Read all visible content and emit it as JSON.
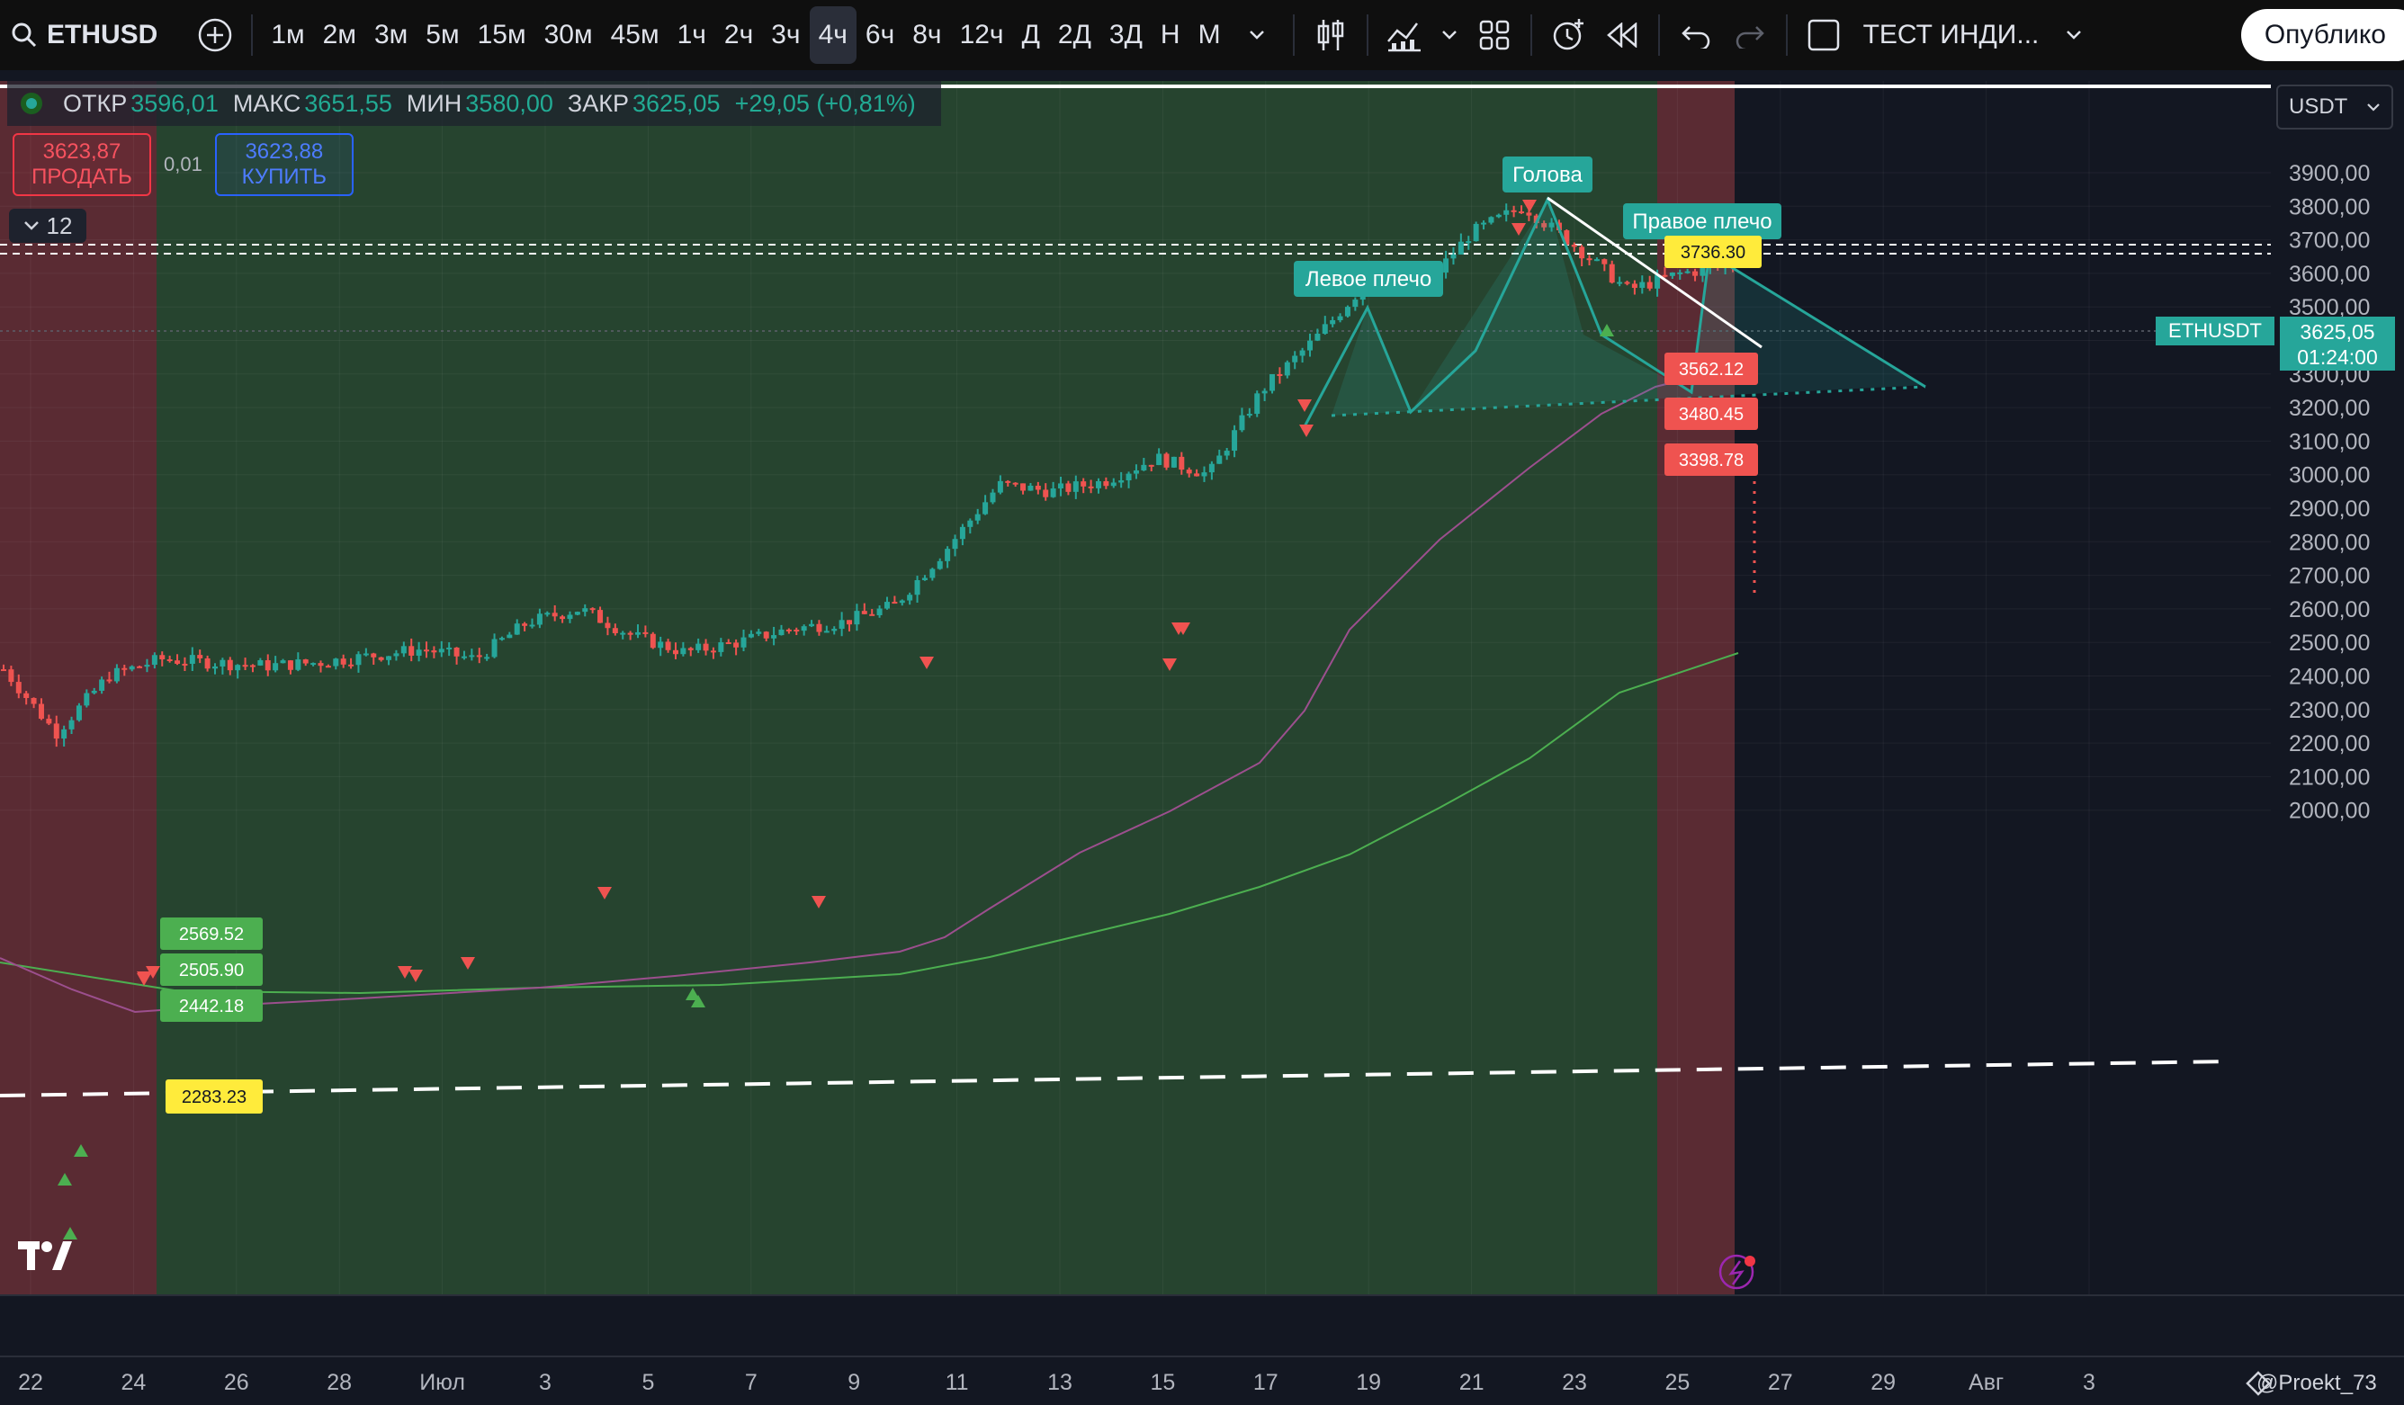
{
  "toolbar": {
    "symbol": "ETHUSD",
    "intervals": [
      "1м",
      "2м",
      "3м",
      "5м",
      "15м",
      "30м",
      "45м",
      "1ч",
      "2ч",
      "3ч",
      "4ч",
      "6ч",
      "8ч",
      "12ч",
      "Д",
      "2Д",
      "3Д",
      "Н",
      "М"
    ],
    "active_interval": "4ч",
    "indicator_template": "ТЕСТ ИНДИ...",
    "publish_label": "Опублико"
  },
  "legend": {
    "open_label": "ОТКР",
    "open": "3596,01",
    "high_label": "МАКС",
    "high": "3651,55",
    "low_label": "МИН",
    "low": "3580,00",
    "close_label": "ЗАКР",
    "close": "3625,05",
    "change": "+29,05 (+0,81%)"
  },
  "trade": {
    "sell_price": "3623,87",
    "sell_label": "ПРОДАТЬ",
    "spread": "0,01",
    "buy_price": "3623,88",
    "buy_label": "КУПИТЬ"
  },
  "collapse_count": "12",
  "price_axis": {
    "currency": "USDT",
    "ticks": [
      "3900,00",
      "3800,00",
      "3700,00",
      "3600,00",
      "3500,00",
      "3400,00",
      "3300,00",
      "3200,00",
      "3100,00",
      "3000,00",
      "2900,00",
      "2800,00",
      "2700,00",
      "2600,00",
      "2500,00",
      "2400,00",
      "2300,00",
      "2200,00",
      "2100,00",
      "2000,00"
    ],
    "current_symbol": "ETHUSDT",
    "current_price": "3625,05",
    "countdown": "01:24:00"
  },
  "time_axis": {
    "labels": [
      "22",
      "24",
      "26",
      "28",
      "Июл",
      "3",
      "5",
      "7",
      "9",
      "11",
      "13",
      "15",
      "17",
      "19",
      "21",
      "23",
      "25",
      "27",
      "29",
      "Авг",
      "3"
    ]
  },
  "annotations": {
    "head": "Голова",
    "left_shoulder": "Левое плечо",
    "right_shoulder": "Правое плечо"
  },
  "level_labels": {
    "l2569": "2569.52",
    "l2505": "2505.90",
    "l2442": "2442.18",
    "l2283": "2283.23",
    "l3736": "3736.30",
    "l3562": "3562.12",
    "l3480": "3480.45",
    "l3398": "3398.78"
  },
  "watermark": "@Proekt_73",
  "colors": {
    "background": "#131722",
    "green_zone": "#26442f",
    "red_zone": "#5a2b33",
    "up": "#26a69a",
    "down": "#ef5350",
    "ma_fast": "#9c4f8e",
    "ma_slow": "#4caf50",
    "accent": "#26a69a"
  },
  "chart_data": {
    "type": "candlestick",
    "ylim": [
      1940,
      3990
    ],
    "x_dates": [
      "22",
      "24",
      "26",
      "28",
      "Июл",
      "3",
      "5",
      "7",
      "9",
      "11",
      "13",
      "15",
      "17",
      "19",
      "21",
      "23",
      "25"
    ],
    "close_path": [
      [
        "22",
        2420
      ],
      [
        "23",
        2230
      ],
      [
        "24",
        2400
      ],
      [
        "25",
        2450
      ],
      [
        "26",
        2440
      ],
      [
        "27",
        2430
      ],
      [
        "28",
        2440
      ],
      [
        "29",
        2460
      ],
      [
        "30",
        2480
      ],
      [
        "Июл",
        2450
      ],
      [
        "2",
        2560
      ],
      [
        "3",
        2600
      ],
      [
        "4",
        2520
      ],
      [
        "5",
        2470
      ],
      [
        "6",
        2500
      ],
      [
        "7",
        2540
      ],
      [
        "8",
        2560
      ],
      [
        "9",
        2610
      ],
      [
        "10",
        2780
      ],
      [
        "11",
        2970
      ],
      [
        "12",
        2950
      ],
      [
        "13",
        2980
      ],
      [
        "14",
        3050
      ],
      [
        "15",
        3000
      ],
      [
        "16",
        3250
      ],
      [
        "17",
        3400
      ],
      [
        "18",
        3570
      ],
      [
        "19",
        3540
      ],
      [
        "20",
        3720
      ],
      [
        "21",
        3800
      ],
      [
        "22",
        3680
      ],
      [
        "23",
        3550
      ],
      [
        "24",
        3600
      ],
      [
        "25",
        3625
      ]
    ],
    "pattern_points": {
      "left_shoulder_peak": 3670,
      "head_peak": 3850,
      "right_shoulder_peak": 3760,
      "neckline": 3520,
      "target_low": 3398.78
    }
  }
}
